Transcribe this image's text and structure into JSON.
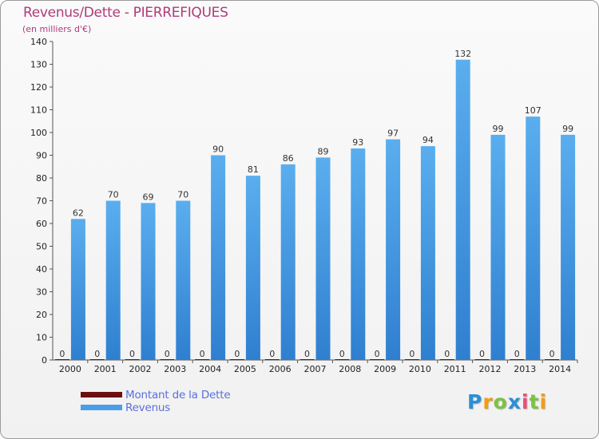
{
  "header": {
    "title": "Revenus/Dette - PIERREFIQUES",
    "subtitle": "(en milliers d'€)"
  },
  "legend": {
    "items": [
      {
        "label": "Montant de la Dette",
        "color": "#6b0f0f"
      },
      {
        "label": "Revenus",
        "color": "#4a9ee8"
      }
    ]
  },
  "logo": {
    "letters": [
      "P",
      "r",
      "o",
      "x",
      "i",
      "t",
      "i"
    ],
    "colors": [
      "#2a8fd6",
      "#f39c12",
      "#7cc242",
      "#2a8fd6",
      "#e94e77",
      "#7cc242",
      "#f39c12"
    ]
  },
  "chart_data": {
    "type": "bar",
    "title": "Revenus/Dette - PIERREFIQUES",
    "subtitle": "(en milliers d'€)",
    "categories": [
      "2000",
      "2001",
      "2002",
      "2003",
      "2004",
      "2005",
      "2006",
      "2007",
      "2008",
      "2009",
      "2010",
      "2011",
      "2012",
      "2013",
      "2014"
    ],
    "series": [
      {
        "name": "Montant de la Dette",
        "color": "#6b0f0f",
        "values": [
          0,
          0,
          0,
          0,
          0,
          0,
          0,
          0,
          0,
          0,
          0,
          0,
          0,
          0,
          0
        ]
      },
      {
        "name": "Revenus",
        "color": "#4a9ee8",
        "values": [
          62,
          70,
          69,
          70,
          90,
          81,
          86,
          89,
          93,
          97,
          94,
          132,
          99,
          107,
          99
        ]
      }
    ],
    "ylim": [
      0,
      140
    ],
    "yticks": [
      0,
      10,
      20,
      30,
      40,
      50,
      60,
      70,
      80,
      90,
      100,
      110,
      120,
      130,
      140
    ],
    "grid": false,
    "legend_position": "bottom-left"
  }
}
